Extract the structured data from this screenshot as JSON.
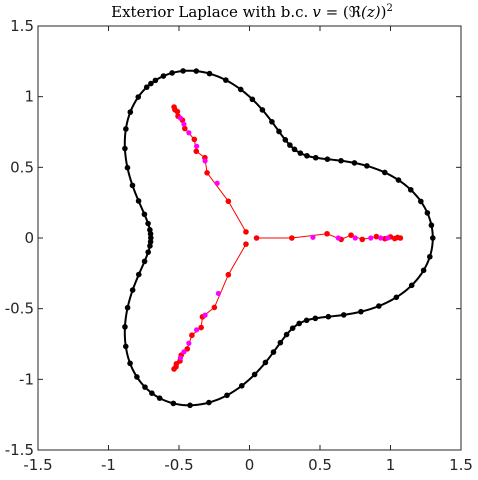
{
  "chart_data": {
    "type": "scatter",
    "title": "Exterior Laplace with b.c. v = (ℜ(z))²",
    "title_parts": {
      "text": "Exterior Laplace with b.c.",
      "v": "v",
      "eq": " = (",
      "re": "ℜ",
      "z": "(z)",
      "close": ")",
      "sup": "2"
    },
    "xlabel": "",
    "ylabel": "",
    "xlim": [
      -1.5,
      1.5
    ],
    "ylim": [
      -1.5,
      1.5
    ],
    "xticks": [
      "-1.5",
      "-1",
      "-0.5",
      "0",
      "0.5",
      "1",
      "1.5"
    ],
    "yticks": [
      "-1.5",
      "-1",
      "-0.5",
      "0",
      "0.5",
      "1",
      "1.5"
    ],
    "grid": false,
    "boundary": {
      "color": "#000000",
      "shape": "three-lobed curve r = 1 + 0.3 cos(3θ)",
      "points_theta": [
        0.0,
        0.07,
        0.14,
        0.21,
        0.29,
        0.37,
        0.45,
        0.55,
        0.62,
        0.7,
        0.79,
        0.88,
        0.96,
        1.03,
        1.1,
        1.16,
        1.22,
        1.3,
        1.38,
        1.47,
        1.55,
        1.63,
        1.72,
        1.81,
        1.88,
        1.95,
        2.01,
        2.06,
        2.11,
        2.14,
        2.17,
        2.24,
        2.33,
        2.42,
        2.52,
        2.62,
        2.72,
        2.82,
        2.92,
        3.0,
        3.06,
        3.1,
        3.14,
        3.18,
        3.22,
        3.28,
        3.36,
        3.46,
        3.56,
        3.66,
        3.76,
        3.86,
        3.95,
        4.03,
        4.1,
        4.15,
        4.2,
        4.28,
        4.37,
        4.47,
        4.57,
        4.66,
        4.75,
        4.84,
        4.92,
        5.0,
        5.08,
        5.16,
        5.24,
        5.32,
        5.4,
        5.5,
        5.6,
        5.7,
        5.8,
        5.9,
        6.0,
        6.1,
        6.18
      ]
    },
    "poles": {
      "color": "#ff0000",
      "arms_angle_deg": [
        0,
        120,
        240
      ],
      "arm_points": [
        [
          0.05,
          0.0
        ],
        [
          0.3,
          0.0
        ],
        [
          0.55,
          0.03
        ],
        [
          0.65,
          -0.01
        ],
        [
          0.72,
          0.02
        ],
        [
          0.8,
          -0.01
        ],
        [
          0.9,
          0.01
        ],
        [
          0.96,
          -0.005
        ],
        [
          1.0,
          0.008
        ],
        [
          1.03,
          -0.004
        ],
        [
          1.05,
          0.004
        ],
        [
          1.07,
          0.0
        ]
      ]
    },
    "secondary_points": {
      "color": "#ff00ff",
      "arms_angle_deg": [
        0,
        120,
        240
      ],
      "arm_points": [
        [
          0.45,
          0.005
        ],
        [
          0.63,
          0.0
        ],
        [
          0.75,
          0.0
        ],
        [
          0.86,
          0.0
        ],
        [
          0.93,
          0.0
        ],
        [
          0.98,
          0.0
        ]
      ]
    }
  }
}
